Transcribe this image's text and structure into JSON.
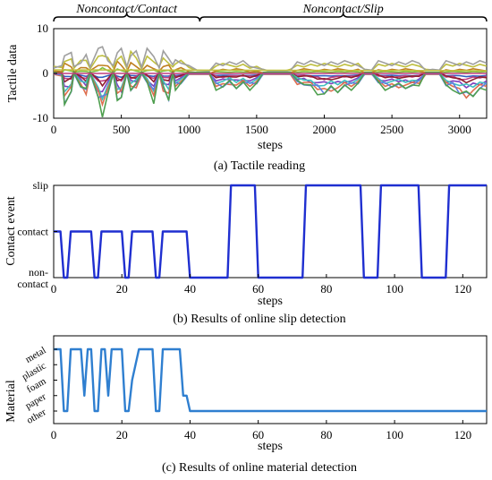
{
  "chart_data": [
    {
      "type": "line",
      "caption": "(a) Tactile reading",
      "ylabel": "Tactile data",
      "xlabel": "steps",
      "xlim": [
        0,
        3200
      ],
      "ylim": [
        -10,
        10
      ],
      "xticks": [
        0,
        500,
        1000,
        1500,
        2000,
        2500,
        3000
      ],
      "yticks": [
        -10,
        0,
        10
      ],
      "phases": [
        {
          "label": "Noncontact/Contact",
          "range": [
            0,
            1080
          ]
        },
        {
          "label": "Noncontact/Slip",
          "range": [
            1080,
            3200
          ]
        }
      ],
      "series_colors": [
        "#2f5fbf",
        "#7fbf3f",
        "#bf3f7f",
        "#8f1f2f",
        "#bf7f1f",
        "#7f3fbf",
        "#3fbfbf",
        "#bfbf3f",
        "#dd6f4f",
        "#5f7fdf",
        "#9f9f9f",
        "#4f9f4f"
      ],
      "x": [
        0,
        60,
        80,
        130,
        150,
        200,
        240,
        270,
        330,
        360,
        400,
        440,
        470,
        500,
        540,
        570,
        610,
        650,
        690,
        740,
        780,
        810,
        850,
        880,
        900,
        940,
        1000,
        1060,
        1150,
        1200,
        1250,
        1300,
        1350,
        1400,
        1450,
        1500,
        1550,
        1600,
        1650,
        1700,
        1750,
        1800,
        1850,
        1900,
        1950,
        2000,
        2050,
        2100,
        2150,
        2200,
        2250,
        2300,
        2350,
        2400,
        2450,
        2500,
        2550,
        2600,
        2650,
        2700,
        2750,
        2800,
        2850,
        2900,
        2950,
        3000,
        3050,
        3100,
        3150,
        3200
      ],
      "envelope_min": [
        0,
        -0.5,
        -8,
        -6,
        0,
        -4,
        -6,
        0,
        -8,
        -10,
        -6,
        0,
        -7,
        -8,
        0,
        -5,
        -4,
        0,
        -3,
        -7,
        0,
        -5,
        -7,
        0,
        -4,
        -3,
        0,
        0,
        0,
        -4,
        -4,
        -3,
        -4,
        -3,
        -4,
        -3,
        0,
        0,
        0,
        0,
        0,
        -3,
        -3,
        -4,
        -5,
        -6,
        -5,
        -5,
        -4,
        -4,
        -3,
        0,
        0,
        -3,
        -4,
        -4,
        -4,
        -4,
        -4,
        -3,
        0,
        0,
        0,
        -4,
        -4,
        -6,
        -7,
        -6,
        -5,
        -4
      ],
      "envelope_max": [
        2,
        2,
        6,
        5,
        2,
        4,
        5,
        2,
        6,
        8,
        5,
        2,
        7,
        6,
        2,
        7,
        6,
        2,
        6,
        5,
        2,
        6,
        5,
        2,
        4,
        4,
        2,
        1,
        0.5,
        3,
        3,
        3,
        3,
        3,
        2,
        2,
        1,
        0.5,
        0.5,
        0.5,
        1,
        3,
        3,
        3,
        3,
        3,
        3,
        3,
        3,
        3,
        3,
        1,
        1,
        3,
        3,
        3,
        3,
        3,
        3,
        3,
        1,
        1,
        1,
        3,
        3,
        3,
        3,
        3,
        3,
        3
      ]
    },
    {
      "type": "line",
      "caption": "(b) Results of online slip detection",
      "ylabel": "Contact event",
      "xlabel": "steps",
      "xlim": [
        0,
        127
      ],
      "xticks": [
        0,
        20,
        40,
        60,
        80,
        100,
        120
      ],
      "ycategories": [
        "non-contact",
        "contact",
        "slip"
      ],
      "ytick_labels": [
        "non-\ncontact",
        "contact",
        "slip"
      ],
      "line_color": "#1f2fd0",
      "x": [
        0,
        1,
        2,
        3,
        4,
        5,
        6,
        7,
        8,
        9,
        10,
        11,
        12,
        13,
        14,
        15,
        16,
        17,
        18,
        19,
        20,
        21,
        22,
        23,
        24,
        25,
        26,
        27,
        28,
        29,
        30,
        31,
        32,
        33,
        34,
        35,
        36,
        37,
        38,
        39,
        40,
        41,
        42,
        43,
        44,
        45,
        46,
        47,
        48,
        49,
        50,
        51,
        52,
        53,
        54,
        55,
        56,
        57,
        58,
        59,
        60,
        61,
        62,
        63,
        64,
        65,
        66,
        67,
        68,
        69,
        70,
        71,
        72,
        73,
        74,
        75,
        76,
        77,
        78,
        79,
        80,
        81,
        82,
        83,
        84,
        85,
        86,
        87,
        88,
        89,
        90,
        91,
        92,
        93,
        94,
        95,
        96,
        97,
        98,
        99,
        100,
        101,
        102,
        103,
        104,
        105,
        106,
        107,
        108,
        109,
        110,
        111,
        112,
        113,
        114,
        115,
        116,
        117,
        118,
        119,
        120,
        121,
        122,
        123,
        124,
        125,
        126,
        127
      ],
      "y": [
        1,
        1,
        1,
        0,
        0,
        1,
        1,
        1,
        1,
        1,
        1,
        1,
        0,
        0,
        1,
        1,
        1,
        1,
        1,
        1,
        1,
        0,
        0,
        1,
        1,
        1,
        1,
        1,
        1,
        1,
        0,
        0,
        1,
        1,
        1,
        1,
        1,
        1,
        1,
        1,
        0,
        0,
        0,
        0,
        0,
        0,
        0,
        0,
        0,
        0,
        0,
        0,
        2,
        2,
        2,
        2,
        2,
        2,
        2,
        2,
        0,
        0,
        0,
        0,
        0,
        0,
        0,
        0,
        0,
        0,
        0,
        0,
        0,
        0,
        2,
        2,
        2,
        2,
        2,
        2,
        2,
        2,
        2,
        2,
        2,
        2,
        2,
        2,
        2,
        2,
        2,
        0,
        0,
        0,
        0,
        0,
        2,
        2,
        2,
        2,
        2,
        2,
        2,
        2,
        2,
        2,
        2,
        2,
        0,
        0,
        0,
        0,
        0,
        0,
        0,
        0,
        2,
        2,
        2,
        2,
        2,
        2,
        2,
        2,
        2,
        2,
        2,
        2
      ]
    },
    {
      "type": "line",
      "caption": "(c) Results of online material detection",
      "ylabel": "Material",
      "xlabel": "steps",
      "xlim": [
        0,
        127
      ],
      "xticks": [
        0,
        20,
        40,
        60,
        80,
        100,
        120
      ],
      "ycategories": [
        "other",
        "paper",
        "foam",
        "plastic",
        "metal"
      ],
      "line_color": "#2f7fd0",
      "x": [
        0,
        1,
        2,
        3,
        4,
        5,
        6,
        7,
        8,
        9,
        10,
        11,
        12,
        13,
        14,
        15,
        16,
        17,
        18,
        19,
        20,
        21,
        22,
        23,
        24,
        25,
        26,
        27,
        28,
        29,
        30,
        31,
        32,
        33,
        34,
        35,
        36,
        37,
        38,
        39,
        40,
        41,
        127
      ],
      "y": [
        4,
        4,
        4,
        0,
        0,
        4,
        4,
        4,
        4,
        1,
        4,
        4,
        0,
        0,
        4,
        4,
        1,
        4,
        4,
        4,
        4,
        0,
        0,
        2,
        3,
        4,
        4,
        4,
        4,
        4,
        0,
        0,
        4,
        4,
        4,
        4,
        4,
        4,
        1,
        1,
        0,
        0,
        0
      ]
    }
  ]
}
